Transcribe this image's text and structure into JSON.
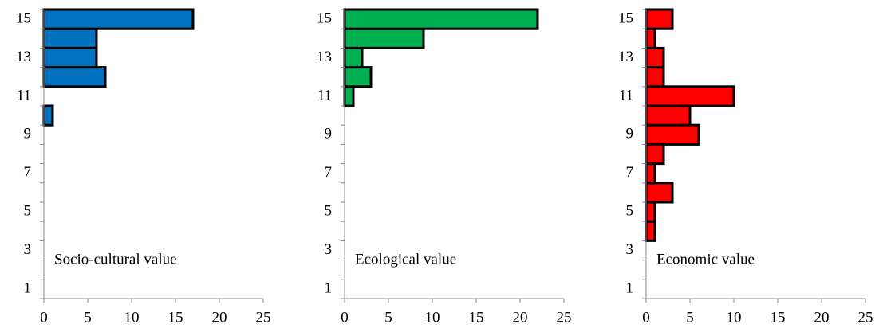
{
  "chart_data": [
    {
      "type": "barh",
      "label": "Socio-cultural value",
      "color": "#0070c0",
      "categories": [
        1,
        null,
        3,
        null,
        5,
        null,
        7,
        null,
        9,
        null,
        11,
        null,
        13,
        null,
        15
      ],
      "values": [
        0,
        0,
        0,
        0,
        0,
        0,
        0,
        0,
        0,
        1,
        0,
        7,
        6,
        6,
        17
      ],
      "xlim": [
        0,
        25
      ],
      "xticks": [
        0,
        5,
        10,
        15,
        20,
        25
      ]
    },
    {
      "type": "barh",
      "label": "Ecological value",
      "color": "#00b050",
      "categories": [
        1,
        null,
        3,
        null,
        5,
        null,
        7,
        null,
        9,
        null,
        11,
        null,
        13,
        null,
        15
      ],
      "values": [
        0,
        0,
        0,
        0,
        0,
        0,
        0,
        0,
        0,
        0,
        1,
        3,
        2,
        9,
        22
      ],
      "xlim": [
        0,
        25
      ],
      "xticks": [
        0,
        5,
        10,
        15,
        20,
        25
      ]
    },
    {
      "type": "barh",
      "label": "Economic value",
      "color": "#ff0000",
      "categories": [
        1,
        null,
        3,
        null,
        5,
        null,
        7,
        null,
        9,
        null,
        11,
        null,
        13,
        null,
        15
      ],
      "values": [
        0,
        0,
        0,
        1,
        1,
        3,
        1,
        2,
        6,
        5,
        10,
        2,
        2,
        1,
        3
      ],
      "xlim": [
        0,
        25
      ],
      "xticks": [
        0,
        5,
        10,
        15,
        20,
        25
      ]
    }
  ]
}
